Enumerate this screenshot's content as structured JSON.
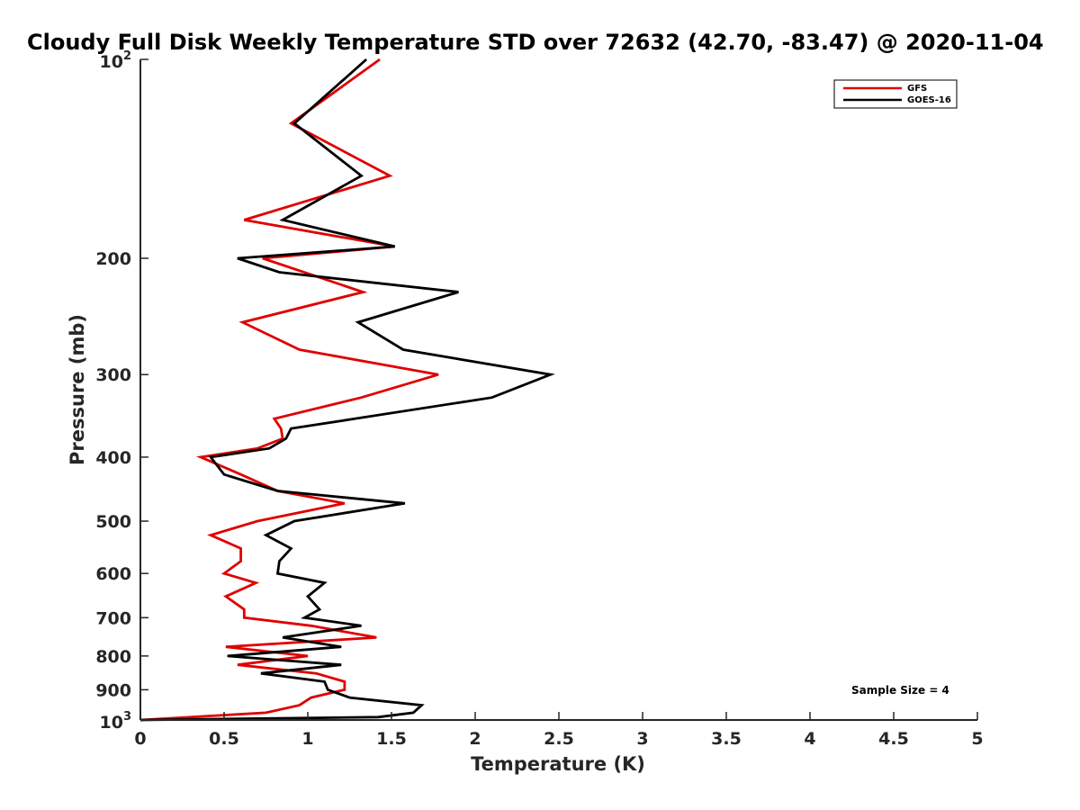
{
  "chart_data": {
    "type": "line",
    "title": "Cloudy Full Disk Weekly Temperature STD over 72632 (42.70, -83.47) @ 2020-11-04",
    "xlabel": "Temperature (K)",
    "ylabel": "Pressure (mb)",
    "xlim": [
      0,
      5
    ],
    "ylim": [
      100,
      1000
    ],
    "y_scale": "log",
    "y_reversed": true,
    "x_ticks": [
      "0",
      "0.5",
      "1",
      "1.5",
      "2",
      "2.5",
      "3",
      "3.5",
      "4",
      "4.5",
      "5"
    ],
    "y_ticks": [
      {
        "value": 200,
        "label": "200"
      },
      {
        "value": 300,
        "label": "300"
      },
      {
        "value": 400,
        "label": "400"
      },
      {
        "value": 500,
        "label": "500"
      },
      {
        "value": 600,
        "label": "600"
      },
      {
        "value": 700,
        "label": "700"
      },
      {
        "value": 800,
        "label": "800"
      },
      {
        "value": 900,
        "label": "900"
      }
    ],
    "y_decade_ticks": [
      {
        "value": 100,
        "base": "10",
        "exp": "2"
      },
      {
        "value": 1000,
        "base": "10",
        "exp": "3"
      }
    ],
    "legend_position": "top-right",
    "grid": false,
    "annotation": "Sample Size = 4",
    "series": [
      {
        "name": "GFS",
        "color": "#e00000",
        "points": [
          [
            1.43,
            100
          ],
          [
            0.9,
            125
          ],
          [
            1.49,
            150
          ],
          [
            0.62,
            175
          ],
          [
            1.52,
            192
          ],
          [
            0.73,
            200
          ],
          [
            1.33,
            225
          ],
          [
            0.61,
            250
          ],
          [
            0.95,
            275
          ],
          [
            1.78,
            300
          ],
          [
            1.32,
            325
          ],
          [
            0.8,
            350
          ],
          [
            0.84,
            362
          ],
          [
            0.85,
            375
          ],
          [
            0.7,
            388
          ],
          [
            0.36,
            400
          ],
          [
            0.6,
            425
          ],
          [
            0.82,
            450
          ],
          [
            1.22,
            470
          ],
          [
            0.7,
            500
          ],
          [
            0.42,
            525
          ],
          [
            0.6,
            550
          ],
          [
            0.6,
            575
          ],
          [
            0.5,
            600
          ],
          [
            0.69,
            620
          ],
          [
            0.51,
            650
          ],
          [
            0.62,
            680
          ],
          [
            0.62,
            700
          ],
          [
            1.02,
            720
          ],
          [
            1.41,
            750
          ],
          [
            0.51,
            775
          ],
          [
            1.0,
            800
          ],
          [
            0.58,
            825
          ],
          [
            1.05,
            850
          ],
          [
            1.22,
            875
          ],
          [
            1.22,
            900
          ],
          [
            1.02,
            925
          ],
          [
            0.95,
            950
          ],
          [
            0.75,
            975
          ],
          [
            0.0,
            1000
          ]
        ]
      },
      {
        "name": "GOES-16",
        "color": "#000000",
        "points": [
          [
            1.35,
            100
          ],
          [
            0.92,
            125
          ],
          [
            1.32,
            150
          ],
          [
            0.85,
            175
          ],
          [
            1.52,
            192
          ],
          [
            0.58,
            200
          ],
          [
            0.83,
            210
          ],
          [
            1.9,
            225
          ],
          [
            1.3,
            250
          ],
          [
            1.57,
            275
          ],
          [
            2.45,
            300
          ],
          [
            2.1,
            325
          ],
          [
            1.28,
            350
          ],
          [
            0.9,
            362
          ],
          [
            0.87,
            375
          ],
          [
            0.77,
            388
          ],
          [
            0.42,
            400
          ],
          [
            0.5,
            425
          ],
          [
            0.82,
            450
          ],
          [
            1.58,
            470
          ],
          [
            0.92,
            500
          ],
          [
            0.75,
            525
          ],
          [
            0.9,
            550
          ],
          [
            0.83,
            575
          ],
          [
            0.82,
            600
          ],
          [
            1.1,
            620
          ],
          [
            1.0,
            650
          ],
          [
            1.07,
            680
          ],
          [
            0.98,
            700
          ],
          [
            1.32,
            720
          ],
          [
            0.85,
            750
          ],
          [
            1.2,
            775
          ],
          [
            0.52,
            800
          ],
          [
            1.2,
            825
          ],
          [
            0.72,
            850
          ],
          [
            1.1,
            875
          ],
          [
            1.12,
            900
          ],
          [
            1.25,
            925
          ],
          [
            1.68,
            950
          ],
          [
            1.63,
            975
          ],
          [
            1.42,
            990
          ],
          [
            0.0,
            1000
          ]
        ]
      }
    ]
  }
}
